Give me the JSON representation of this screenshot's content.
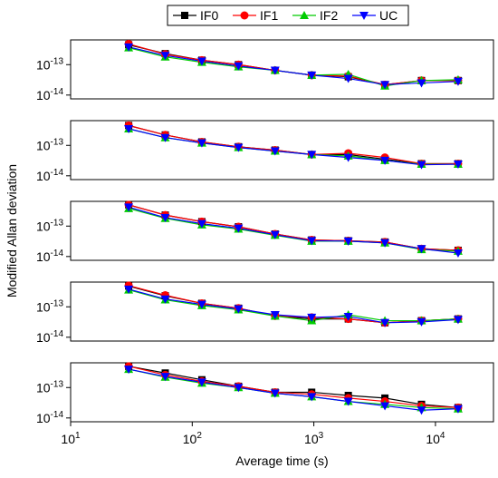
{
  "chart_data": [
    {
      "type": "line",
      "legend": "top",
      "xlog": true,
      "ylog": true,
      "x": [
        30,
        60,
        120,
        240,
        480,
        960,
        1920,
        3840,
        7680,
        15360
      ],
      "xlim": [
        10,
        30000
      ],
      "ylim": [
        7.5e-15,
        6.5e-13
      ],
      "yticks": [
        {
          "value": 1e-14,
          "label": "10^-14"
        },
        {
          "value": 1e-13,
          "label": "10^-13"
        }
      ],
      "series": [
        {
          "name": "IF0",
          "color": "#000000",
          "marker": "square",
          "values": [
            4.5e-13,
            2.3e-13,
            1.4e-13,
            1e-13,
            6.5e-14,
            4.5e-14,
            4e-14,
            2.2e-14,
            3e-14,
            3e-14
          ]
        },
        {
          "name": "IF1",
          "color": "#ff0000",
          "marker": "circle",
          "values": [
            4.8e-13,
            2.2e-13,
            1.4e-13,
            1e-13,
            6.5e-14,
            4.5e-14,
            4.2e-14,
            2.2e-14,
            3e-14,
            3e-14
          ]
        },
        {
          "name": "IF2",
          "color": "#00cc00",
          "marker": "triangle-up",
          "values": [
            3.6e-13,
            1.8e-13,
            1.2e-13,
            8.5e-14,
            6.5e-14,
            4.5e-14,
            4.8e-14,
            2e-14,
            3e-14,
            3.2e-14
          ]
        },
        {
          "name": "UC",
          "color": "#0000ff",
          "marker": "triangle-down",
          "values": [
            3.8e-13,
            2e-13,
            1.3e-13,
            9e-14,
            6.5e-14,
            4.5e-14,
            3.5e-14,
            2.2e-14,
            2.5e-14,
            2.8e-14
          ]
        }
      ]
    },
    {
      "type": "line",
      "xlog": true,
      "ylog": true,
      "x": [
        30,
        60,
        120,
        240,
        480,
        960,
        1920,
        3840,
        7680,
        15360
      ],
      "xlim": [
        10,
        30000
      ],
      "ylim": [
        7.5e-15,
        6.5e-13
      ],
      "yticks": [
        {
          "value": 1e-14,
          "label": "10^-14"
        },
        {
          "value": 1e-13,
          "label": "10^-13"
        }
      ],
      "series": [
        {
          "name": "IF0",
          "color": "#000000",
          "marker": "square",
          "values": [
            4.5e-13,
            2.2e-13,
            1.3e-13,
            9e-14,
            7e-14,
            5e-14,
            5e-14,
            3.5e-14,
            2.5e-14,
            2.5e-14
          ]
        },
        {
          "name": "IF1",
          "color": "#ff0000",
          "marker": "circle",
          "values": [
            4.5e-13,
            2.2e-13,
            1.3e-13,
            9e-14,
            7e-14,
            5e-14,
            5.5e-14,
            4e-14,
            2.5e-14,
            2.5e-14
          ]
        },
        {
          "name": "IF2",
          "color": "#00cc00",
          "marker": "triangle-up",
          "values": [
            3.5e-13,
            1.8e-13,
            1.2e-13,
            8.5e-14,
            6.5e-14,
            5e-14,
            4.5e-14,
            3.2e-14,
            2.4e-14,
            2.4e-14
          ]
        },
        {
          "name": "UC",
          "color": "#0000ff",
          "marker": "triangle-down",
          "values": [
            3.5e-13,
            1.8e-13,
            1.2e-13,
            8.5e-14,
            6.5e-14,
            5e-14,
            4e-14,
            3.2e-14,
            2.3e-14,
            2.4e-14
          ]
        }
      ]
    },
    {
      "type": "line",
      "xlog": true,
      "ylog": true,
      "ylabel": "Modified Allan deviation",
      "x": [
        30,
        60,
        120,
        240,
        480,
        960,
        1920,
        3840,
        7680,
        15360
      ],
      "xlim": [
        10,
        30000
      ],
      "ylim": [
        7.5e-15,
        6.5e-13
      ],
      "yticks": [
        {
          "value": 1e-14,
          "label": "10^-14"
        },
        {
          "value": 1e-13,
          "label": "10^-13"
        }
      ],
      "series": [
        {
          "name": "IF0",
          "color": "#000000",
          "marker": "square",
          "values": [
            5e-13,
            2.3e-13,
            1.4e-13,
            9.5e-14,
            5.5e-14,
            3.5e-14,
            3.3e-14,
            3e-14,
            1.8e-14,
            1.6e-14
          ]
        },
        {
          "name": "IF1",
          "color": "#ff0000",
          "marker": "circle",
          "values": [
            5e-13,
            2.3e-13,
            1.4e-13,
            9.5e-14,
            5.5e-14,
            3.5e-14,
            3.3e-14,
            3e-14,
            1.8e-14,
            1.6e-14
          ]
        },
        {
          "name": "IF2",
          "color": "#00cc00",
          "marker": "triangle-up",
          "values": [
            3.8e-13,
            1.8e-13,
            1.1e-13,
            8e-14,
            5e-14,
            3.2e-14,
            3.2e-14,
            2.8e-14,
            1.7e-14,
            1.5e-14
          ]
        },
        {
          "name": "UC",
          "color": "#0000ff",
          "marker": "triangle-down",
          "values": [
            4.2e-13,
            1.9e-13,
            1.2e-13,
            8.5e-14,
            5.2e-14,
            3.3e-14,
            3.2e-14,
            2.8e-14,
            1.8e-14,
            1.3e-14
          ]
        }
      ]
    },
    {
      "type": "line",
      "xlog": true,
      "ylog": true,
      "x": [
        30,
        60,
        120,
        240,
        480,
        960,
        1920,
        3840,
        7680,
        15360
      ],
      "xlim": [
        10,
        30000
      ],
      "ylim": [
        7.5e-15,
        6.5e-13
      ],
      "yticks": [
        {
          "value": 1e-14,
          "label": "10^-14"
        },
        {
          "value": 1e-13,
          "label": "10^-13"
        }
      ],
      "series": [
        {
          "name": "IF0",
          "color": "#000000",
          "marker": "square",
          "values": [
            4.8e-13,
            2.3e-13,
            1.3e-13,
            9e-14,
            5e-14,
            4e-14,
            4e-14,
            3e-14,
            3.5e-14,
            4e-14
          ]
        },
        {
          "name": "IF1",
          "color": "#ff0000",
          "marker": "circle",
          "values": [
            5e-13,
            2.4e-13,
            1.3e-13,
            9e-14,
            5e-14,
            4.5e-14,
            4e-14,
            3e-14,
            3.5e-14,
            4e-14
          ]
        },
        {
          "name": "IF2",
          "color": "#00cc00",
          "marker": "triangle-up",
          "values": [
            3.6e-13,
            1.7e-13,
            1.1e-13,
            8e-14,
            5e-14,
            3.5e-14,
            5.5e-14,
            3.5e-14,
            3.5e-14,
            4e-14
          ]
        },
        {
          "name": "UC",
          "color": "#0000ff",
          "marker": "triangle-down",
          "values": [
            3.8e-13,
            1.8e-13,
            1.2e-13,
            8.5e-14,
            5.5e-14,
            4.5e-14,
            4.8e-14,
            3e-14,
            3.2e-14,
            3.8e-14
          ]
        }
      ]
    },
    {
      "type": "line",
      "xlog": true,
      "ylog": true,
      "xlabel": "Average time (s)",
      "x": [
        30,
        60,
        120,
        240,
        480,
        960,
        1920,
        3840,
        7680,
        15360
      ],
      "xlim": [
        10,
        30000
      ],
      "ylim": [
        7.5e-15,
        6.5e-13
      ],
      "xticks": [
        {
          "value": 10,
          "label": "10^1"
        },
        {
          "value": 100,
          "label": "10^2"
        },
        {
          "value": 1000,
          "label": "10^3"
        },
        {
          "value": 10000,
          "label": "10^4"
        }
      ],
      "yticks": [
        {
          "value": 1e-14,
          "label": "10^-14"
        },
        {
          "value": 1e-13,
          "label": "10^-13"
        }
      ],
      "series": [
        {
          "name": "IF0",
          "color": "#000000",
          "marker": "square",
          "values": [
            5e-13,
            3e-13,
            1.8e-13,
            1.1e-13,
            7e-14,
            7e-14,
            5.5e-14,
            4.5e-14,
            2.8e-14,
            2.2e-14
          ]
        },
        {
          "name": "IF1",
          "color": "#ff0000",
          "marker": "circle",
          "values": [
            5e-13,
            2.6e-13,
            1.6e-13,
            1.1e-13,
            7e-14,
            6e-14,
            4.5e-14,
            3.5e-14,
            2.5e-14,
            2.2e-14
          ]
        },
        {
          "name": "IF2",
          "color": "#00cc00",
          "marker": "triangle-up",
          "values": [
            4e-13,
            2.2e-13,
            1.4e-13,
            1e-13,
            6.5e-14,
            5e-14,
            3.5e-14,
            2.8e-14,
            2.2e-14,
            2e-14
          ]
        },
        {
          "name": "UC",
          "color": "#0000ff",
          "marker": "triangle-down",
          "values": [
            4e-13,
            2.3e-13,
            1.5e-13,
            1e-13,
            6.5e-14,
            5e-14,
            3.5e-14,
            2.5e-14,
            1.8e-14,
            2e-14
          ]
        }
      ]
    }
  ]
}
